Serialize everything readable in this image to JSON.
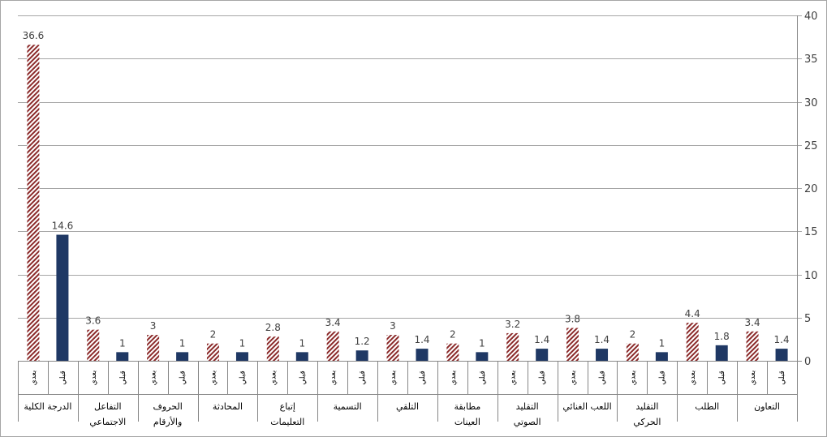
{
  "chart_data": {
    "type": "bar",
    "categories": [
      "الدرجة الكلية",
      "التفاعل الاجتماعي",
      "الحروف والأرقام",
      "المحادثة",
      "إتباع التعليمات",
      "التسمية",
      "التلقي",
      "مطابقة العينات",
      "التقليد الصوتي",
      "اللعب الغنائي",
      "التقليد الحركي",
      "الطلب",
      "التعاون"
    ],
    "category_lines": [
      [
        "الدرجة الكلية"
      ],
      [
        "التفاعل",
        "الاجتماعي"
      ],
      [
        "الحروف",
        "والأرقام"
      ],
      [
        "المحادثة"
      ],
      [
        "إتباع",
        "التعليمات"
      ],
      [
        "التسمية"
      ],
      [
        "التلقي"
      ],
      [
        "مطابقة",
        "العينات"
      ],
      [
        "التقليد",
        "الصوتي"
      ],
      [
        "اللعب الغنائي"
      ],
      [
        "التقليد",
        "الحركي"
      ],
      [
        "الطلب"
      ],
      [
        "التعاون"
      ]
    ],
    "series": [
      {
        "name": "بعدي",
        "values": [
          36.6,
          3.6,
          3,
          2,
          2.8,
          3.4,
          3,
          2,
          3.2,
          3.8,
          2,
          4.4,
          3.4
        ],
        "color": "#8b2a2a",
        "pattern": "diagonal-hatch"
      },
      {
        "name": "قبلي",
        "values": [
          14.6,
          1,
          1,
          1,
          1,
          1.2,
          1.4,
          1,
          1.4,
          1.4,
          1,
          1.8,
          1.4
        ],
        "color": "#1f3864",
        "pattern": "solid"
      }
    ],
    "y_ticks": [
      "0",
      "5",
      "10",
      "15",
      "20",
      "25",
      "30",
      "35",
      "40"
    ],
    "ylim": [
      0,
      40
    ],
    "y_axis_side": "right",
    "grid": true,
    "legend": "none",
    "title": "",
    "xlabel": "",
    "ylabel": ""
  }
}
